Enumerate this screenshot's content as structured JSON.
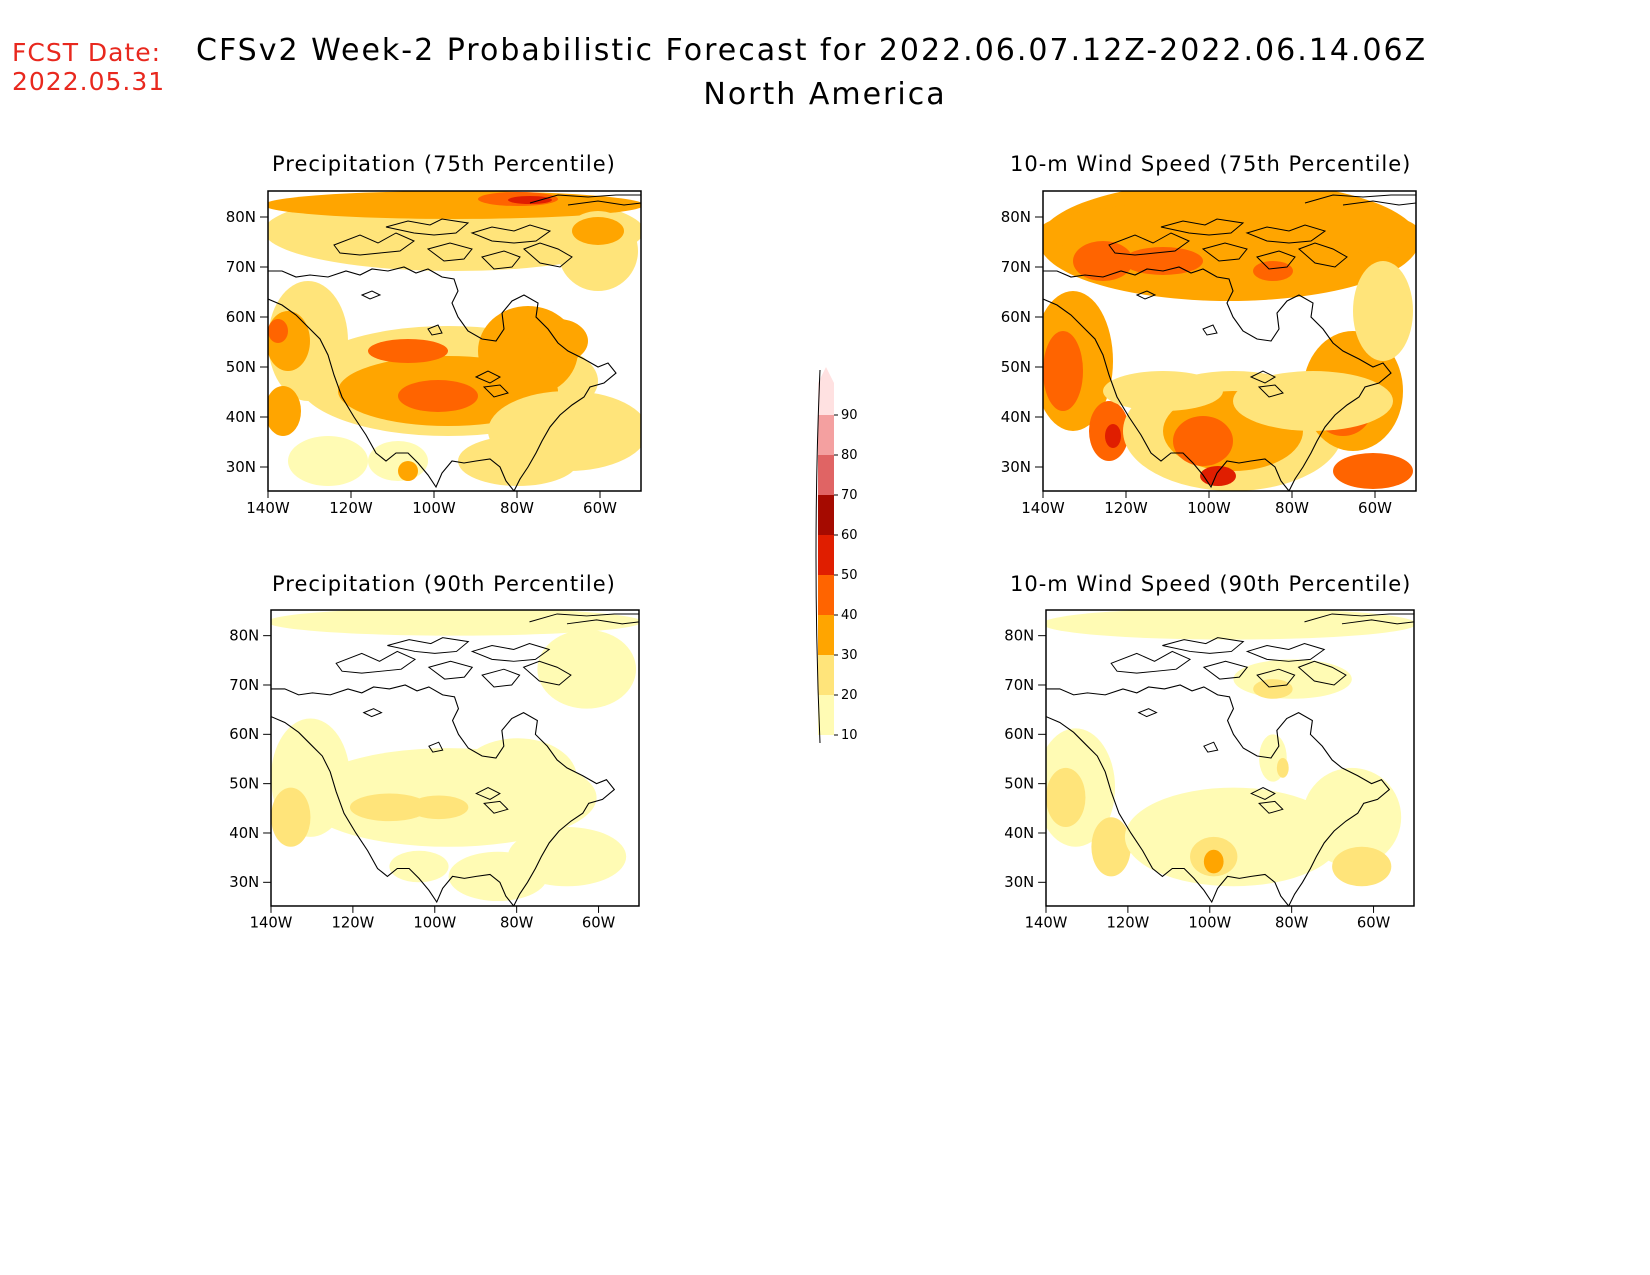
{
  "header": {
    "fcst_label": "FCST Date:",
    "fcst_date": "2022.05.31",
    "title": "CFSv2 Week-2 Probabilistic Forecast for 2022.06.07.12Z-2022.06.14.06Z",
    "region": "North America"
  },
  "panels": [
    {
      "id": "precip75",
      "title": "Precipitation (75th Percentile)"
    },
    {
      "id": "precip90",
      "title": "Precipitation (90th Percentile)"
    },
    {
      "id": "wind75",
      "title": "10-m Wind Speed (75th Percentile)"
    },
    {
      "id": "wind90",
      "title": "10-m Wind Speed (90th Percentile)"
    }
  ],
  "axes": {
    "lat_labels": [
      "80N",
      "70N",
      "60N",
      "50N",
      "40N",
      "30N"
    ],
    "lon_labels": [
      "140W",
      "120W",
      "100W",
      "80W",
      "60W"
    ]
  },
  "colorbar": {
    "levels": [
      "10",
      "20",
      "30",
      "40",
      "50",
      "60",
      "70",
      "80",
      "90"
    ],
    "colors": [
      "#fffbb4",
      "#ffe47a",
      "#ffa500",
      "#ff6400",
      "#e01e00",
      "#a50a00",
      "#e06464",
      "#f4a0a0",
      "#ffe1e1"
    ]
  }
}
